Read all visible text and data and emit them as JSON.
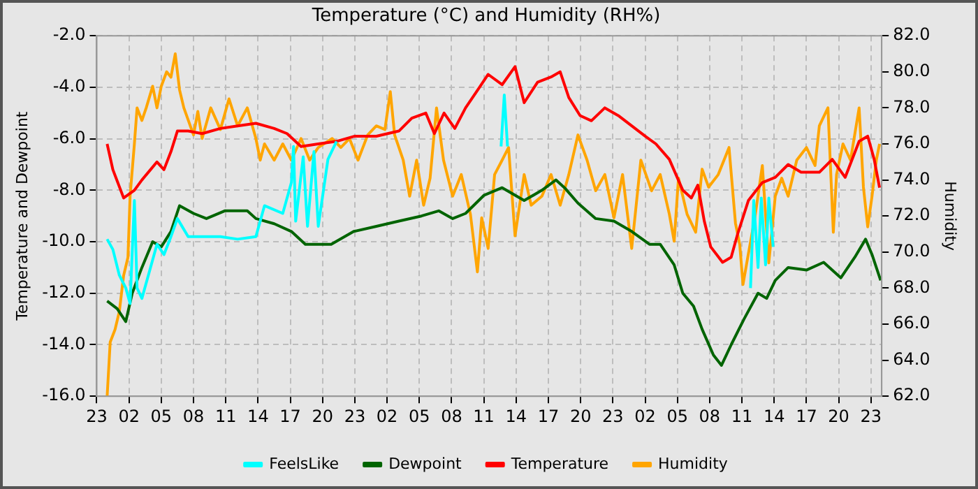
{
  "chart_data": {
    "type": "line",
    "title": "Temperature (°C) and Humidity (RH%)",
    "ylabel": "Temperature and Dewpoint",
    "y2label": "Humidity",
    "xlim": [
      "--01-01T23:00",
      "--01-05T00:00"
    ],
    "xticks": [
      {
        "value": "--01-01T23:00",
        "label": "23"
      },
      {
        "value": "--01-02T02:00",
        "label": "02"
      },
      {
        "value": "--01-02T05:00",
        "label": "05"
      },
      {
        "value": "--01-02T08:00",
        "label": "08"
      },
      {
        "value": "--01-02T11:00",
        "label": "11"
      },
      {
        "value": "--01-02T14:00",
        "label": "14"
      },
      {
        "value": "--01-02T17:00",
        "label": "17"
      },
      {
        "value": "--01-02T20:00",
        "label": "20"
      },
      {
        "value": "--01-02T23:00",
        "label": "23"
      },
      {
        "value": "--01-03T02:00",
        "label": "02"
      },
      {
        "value": "--01-03T05:00",
        "label": "05"
      },
      {
        "value": "--01-03T08:00",
        "label": "08"
      },
      {
        "value": "--01-03T11:00",
        "label": "11"
      },
      {
        "value": "--01-03T14:00",
        "label": "14"
      },
      {
        "value": "--01-03T17:00",
        "label": "17"
      },
      {
        "value": "--01-03T20:00",
        "label": "20"
      },
      {
        "value": "--01-03T23:00",
        "label": "23"
      },
      {
        "value": "--01-04T02:00",
        "label": "02"
      },
      {
        "value": "--01-04T05:00",
        "label": "05"
      },
      {
        "value": "--01-04T08:00",
        "label": "08"
      },
      {
        "value": "--01-04T11:00",
        "label": "11"
      },
      {
        "value": "--01-04T14:00",
        "label": "14"
      },
      {
        "value": "--01-04T17:00",
        "label": "17"
      },
      {
        "value": "--01-04T20:00",
        "label": "20"
      },
      {
        "value": "--01-04T23:00",
        "label": "23"
      }
    ],
    "ylim": [
      -16,
      -2
    ],
    "yticks": [
      {
        "value": -16,
        "label": "-16.0"
      },
      {
        "value": -14,
        "label": "-14.0"
      },
      {
        "value": -12,
        "label": "-12.0"
      },
      {
        "value": -10,
        "label": "-10.0"
      },
      {
        "value": -8,
        "label": "-8.0"
      },
      {
        "value": -6,
        "label": "-6.0"
      },
      {
        "value": -4,
        "label": "-4.0"
      },
      {
        "value": -2,
        "label": "-2.0"
      }
    ],
    "y2lim": [
      62,
      82
    ],
    "y2ticks": [
      {
        "value": 62,
        "label": "62.0"
      },
      {
        "value": 64,
        "label": "64.0"
      },
      {
        "value": 66,
        "label": "66.0"
      },
      {
        "value": 68,
        "label": "68.0"
      },
      {
        "value": 70,
        "label": "70.0"
      },
      {
        "value": 72,
        "label": "72.0"
      },
      {
        "value": 74,
        "label": "74.0"
      },
      {
        "value": 76,
        "label": "76.0"
      },
      {
        "value": 78,
        "label": "78.0"
      },
      {
        "value": 80,
        "label": "80.0"
      },
      {
        "value": 82,
        "label": "82.0"
      }
    ],
    "grid": true,
    "legend": "bottom",
    "marker": "none",
    "line_style": "solid",
    "series": [
      {
        "name": "FeelsLike",
        "color": "#00ffff",
        "x": [
          "--01-01T23:58",
          "--01-02T00:30",
          "--01-02T01:06",
          "--01-02T01:42",
          "--01-02T02:06",
          "--01-02T02:30",
          "--01-02T02:45",
          "--01-02T03:12",
          "--01-02T04:00",
          "--01-02T04:36",
          "--01-02T05:15",
          "--01-02T05:54",
          "--01-02T06:30",
          "--01-02T07:30",
          "--01-02T08:48",
          "--01-02T10:30",
          "--01-02T12:06",
          "--01-02T13:48",
          "--01-02T14:36",
          "--01-02T16:18",
          "--01-02T17:06",
          "--01-02T17:18",
          "--01-02T17:30",
          "--01-02T18:12",
          "--01-02T18:36",
          "--01-02T19:12",
          "--01-02T19:36",
          "--01-02T20:30",
          "--01-02T21:18",
          "--01-02T21:36",
          "--01-03T12:36",
          "--01-03T12:54",
          "--01-03T13:12",
          "--01-03T13:30",
          "--01-04T11:48",
          "--01-04T12:06",
          "--01-04T12:30",
          "--01-04T12:48",
          "--01-04T13:12",
          "--01-04T13:30",
          "--01-04T13:54"
        ],
        "values": [
          -9.9,
          -10.3,
          -11.3,
          -11.8,
          -12.4,
          -8.4,
          -11.8,
          -12.2,
          -11,
          -10.1,
          -10.5,
          -9.8,
          -9.1,
          -9.8,
          -9.8,
          -9.8,
          -9.9,
          -9.8,
          -8.6,
          -8.9,
          -7.7,
          -6.3,
          -9.2,
          -6.7,
          -9.4,
          -6.5,
          -9.4,
          -6.8,
          -6.1,
          null,
          -6.3,
          -4.3,
          -6.3,
          null,
          -11.8,
          -8.4,
          -11,
          -8.3,
          -10.9,
          -8.3,
          -10.2
        ]
      },
      {
        "name": "Dewpoint",
        "color": "#006400",
        "x": [
          "--01-01T23:58",
          "--01-02T00:54",
          "--01-02T01:42",
          "--01-02T02:18",
          "--01-02T03:12",
          "--01-02T04:12",
          "--01-02T05:00",
          "--01-02T05:54",
          "--01-02T06:42",
          "--01-02T08:00",
          "--01-02T09:12",
          "--01-02T10:54",
          "--01-02T13:00",
          "--01-02T13:48",
          "--01-02T15:30",
          "--01-02T17:06",
          "--01-02T18:24",
          "--01-02T19:36",
          "--01-02T20:48",
          "--01-02T22:54",
          "--01-03T01:00",
          "--01-03T03:06",
          "--01-03T05:12",
          "--01-03T06:48",
          "--01-03T08:06",
          "--01-03T09:18",
          "--01-03T11:00",
          "--01-03T12:42",
          "--01-03T14:45",
          "--01-03T16:24",
          "--01-03T17:42",
          "--01-03T18:30",
          "--01-03T19:45",
          "--01-03T21:24",
          "--01-03T23:06",
          "--01-04T00:45",
          "--01-04T02:24",
          "--01-04T03:24",
          "--01-04T04:42",
          "--01-04T05:30",
          "--01-04T06:30",
          "--01-04T07:18",
          "--01-04T08:21",
          "--01-04T09:06",
          "--01-04T10:00",
          "--01-04T11:12",
          "--01-04T12:30",
          "--01-04T13:18",
          "--01-04T14:06",
          "--01-04T15:18",
          "--01-04T17:00",
          "--01-04T18:36",
          "--01-04T20:12",
          "--01-04T21:30",
          "--01-04T22:30",
          "--01-04T23:06",
          "--01-04T23:54"
        ],
        "values": [
          -12.3,
          -12.6,
          -13.1,
          -12,
          -11,
          -10,
          -10.2,
          -9.6,
          -8.6,
          -8.9,
          -9.1,
          -8.8,
          -8.8,
          -9.1,
          -9.3,
          -9.6,
          -10.1,
          -10.1,
          -10.1,
          -9.6,
          -9.4,
          -9.2,
          -9,
          -8.8,
          -9.1,
          -8.9,
          -8.2,
          -7.9,
          -8.4,
          -8,
          -7.6,
          -7.9,
          -8.5,
          -9.1,
          -9.2,
          -9.6,
          -10.1,
          -10.1,
          -10.9,
          -12,
          -12.5,
          -13.4,
          -14.4,
          -14.8,
          -14,
          -13,
          -12,
          -12.2,
          -11.5,
          -11,
          -11.1,
          -10.8,
          -11.4,
          -10.6,
          -9.9,
          -10.5,
          -11.5
        ]
      },
      {
        "name": "Temperature",
        "color": "#ff0000",
        "x": [
          "--01-01T23:58",
          "--01-02T00:30",
          "--01-02T01:30",
          "--01-02T02:30",
          "--01-02T03:12",
          "--01-02T04:00",
          "--01-02T04:36",
          "--01-02T05:15",
          "--01-02T05:54",
          "--01-02T06:30",
          "--01-02T07:30",
          "--01-02T08:48",
          "--01-02T10:30",
          "--01-02T12:06",
          "--01-02T13:48",
          "--01-02T15:30",
          "--01-02T16:42",
          "--01-02T18:00",
          "--01-02T19:36",
          "--01-02T21:18",
          "--01-02T23:00",
          "--01-03T01:00",
          "--01-03T03:06",
          "--01-03T04:18",
          "--01-03T05:36",
          "--01-03T06:24",
          "--01-03T07:18",
          "--01-03T08:18",
          "--01-03T09:18",
          "--01-03T10:36",
          "--01-03T11:24",
          "--01-03T12:42",
          "--01-03T13:54",
          "--01-03T14:45",
          "--01-03T16:00",
          "--01-03T17:15",
          "--01-03T18:06",
          "--01-03T18:54",
          "--01-03T19:57",
          "--01-03T21:00",
          "--01-03T22:15",
          "--01-03T23:30",
          "--01-04T00:45",
          "--01-04T02:00",
          "--01-04T03:00",
          "--01-04T04:15",
          "--01-04T05:30",
          "--01-04T06:18",
          "--01-04T06:54",
          "--01-04T07:30",
          "--01-04T08:06",
          "--01-04T09:12",
          "--01-04T10:00",
          "--01-04T10:36",
          "--01-04T11:36",
          "--01-04T12:54",
          "--01-04T14:06",
          "--01-04T15:18",
          "--01-04T16:30",
          "--01-04T18:12",
          "--01-04T19:24",
          "--01-04T20:36",
          "--01-04T21:54",
          "--01-04T22:42",
          "--01-04T23:18",
          "--01-04T23:48"
        ],
        "values": [
          -6.2,
          -7.2,
          -8.3,
          -8,
          -7.6,
          -7.2,
          -6.9,
          -7.2,
          -6.5,
          -5.7,
          -5.7,
          -5.8,
          -5.6,
          -5.5,
          -5.4,
          -5.6,
          -5.8,
          -6.3,
          -6.2,
          -6.1,
          -5.9,
          -5.9,
          -5.7,
          -5.2,
          -5,
          -5.8,
          -5,
          -5.6,
          -4.8,
          -4,
          -3.5,
          -3.9,
          -3.2,
          -4.6,
          -3.8,
          -3.6,
          -3.4,
          -4.4,
          -5.1,
          -5.3,
          -4.8,
          -5.1,
          -5.5,
          -5.9,
          -6.2,
          -6.8,
          -8,
          -8.3,
          -7.8,
          -9.2,
          -10.2,
          -10.8,
          -10.6,
          -9.7,
          -8.4,
          -7.7,
          -7.5,
          -7,
          -7.3,
          -7.3,
          -6.8,
          -7.5,
          -6.1,
          -5.9,
          -6.8,
          -7.9
        ]
      },
      {
        "name": "Humidity",
        "color": "#ffa500",
        "axis": "y2",
        "x": [
          "--01-01T23:58",
          "--01-02T00:15",
          "--01-02T00:42",
          "--01-02T01:06",
          "--01-02T01:30",
          "--01-02T01:54",
          "--01-02T02:06",
          "--01-02T02:30",
          "--01-02T02:45",
          "--01-02T03:12",
          "--01-02T03:36",
          "--01-02T04:12",
          "--01-02T04:36",
          "--01-02T05:00",
          "--01-02T05:30",
          "--01-02T05:54",
          "--01-02T06:18",
          "--01-02T06:42",
          "--01-02T07:06",
          "--01-02T08:00",
          "--01-02T08:24",
          "--01-02T08:48",
          "--01-02T09:36",
          "--01-02T10:30",
          "--01-02T11:18",
          "--01-02T12:06",
          "--01-02T13:00",
          "--01-02T13:48",
          "--01-02T14:12",
          "--01-02T14:36",
          "--01-02T15:30",
          "--01-02T16:18",
          "--01-02T17:06",
          "--01-02T18:00",
          "--01-02T18:48",
          "--01-02T19:36",
          "--01-02T20:54",
          "--01-02T21:42",
          "--01-02T22:30",
          "--01-02T23:18",
          "--01-03T00:12",
          "--01-03T01:00",
          "--01-03T01:48",
          "--01-03T02:18",
          "--01-03T02:42",
          "--01-03T03:30",
          "--01-03T04:06",
          "--01-03T04:45",
          "--01-03T05:24",
          "--01-03T06:00",
          "--01-03T06:36",
          "--01-03T07:15",
          "--01-03T08:06",
          "--01-03T08:54",
          "--01-03T09:45",
          "--01-03T10:24",
          "--01-03T10:48",
          "--01-03T11:24",
          "--01-03T12:00",
          "--01-03T12:42",
          "--01-03T13:18",
          "--01-03T13:54",
          "--01-03T14:45",
          "--01-03T15:24",
          "--01-03T16:24",
          "--01-03T17:15",
          "--01-03T18:06",
          "--01-03T18:54",
          "--01-03T19:45",
          "--01-03T20:36",
          "--01-03T21:24",
          "--01-03T22:15",
          "--01-03T23:06",
          "--01-03T23:54",
          "--01-04T00:45",
          "--01-04T01:36",
          "--01-04T02:36",
          "--01-04T03:24",
          "--01-04T04:15",
          "--01-04T04:42",
          "--01-04T05:06",
          "--01-04T05:54",
          "--01-04T06:42",
          "--01-04T07:18",
          "--01-04T07:54",
          "--01-04T08:48",
          "--01-04T09:48",
          "--01-04T10:24",
          "--01-04T10:48",
          "--01-04T11:06",
          "--01-04T11:36",
          "--01-04T12:12",
          "--01-04T12:54",
          "--01-04T13:30",
          "--01-04T14:06",
          "--01-04T14:42",
          "--01-04T15:18",
          "--01-04T16:06",
          "--01-04T17:00",
          "--01-04T17:48",
          "--01-04T18:12",
          "--01-04T19:00",
          "--01-04T19:30",
          "--01-04T19:48",
          "--01-04T20:24",
          "--01-04T21:06",
          "--01-04T21:54",
          "--01-04T22:18",
          "--01-04T22:42",
          "--01-04T23:06",
          "--01-04T23:30",
          "--01-04T23:48"
        ],
        "values": [
          62,
          65,
          65.7,
          66.7,
          68.7,
          69.7,
          73.1,
          76,
          78,
          77.3,
          78,
          79.2,
          78,
          79.2,
          80,
          79.7,
          81,
          79,
          78,
          76.5,
          77.8,
          76.3,
          78,
          76.8,
          78.5,
          77,
          78,
          76.3,
          75.1,
          76,
          75.1,
          76,
          75.1,
          76.3,
          75.1,
          75.8,
          76.3,
          75.8,
          76.3,
          75.1,
          76.5,
          77,
          76.8,
          78.9,
          76.5,
          75.1,
          73.1,
          75.1,
          72.6,
          74.1,
          78,
          75.1,
          73.1,
          74.3,
          72.1,
          68.9,
          71.9,
          70.2,
          74.3,
          75.1,
          75.8,
          70.9,
          74.3,
          72.6,
          73.1,
          74.3,
          72.6,
          74.3,
          76.5,
          75.1,
          73.4,
          74.3,
          71.9,
          74.3,
          70.2,
          75.1,
          73.4,
          74.3,
          72.1,
          70.6,
          74.1,
          72.1,
          71.1,
          74.6,
          73.6,
          74.3,
          75.8,
          71.6,
          70.4,
          68.2,
          69.9,
          71.9,
          74.8,
          69.4,
          73.1,
          74.1,
          73.1,
          75.1,
          75.8,
          74.8,
          77,
          78,
          71.1,
          74.3,
          76,
          75.1,
          78,
          73.6,
          71.4,
          73.1,
          75.1,
          76
        ]
      }
    ]
  }
}
